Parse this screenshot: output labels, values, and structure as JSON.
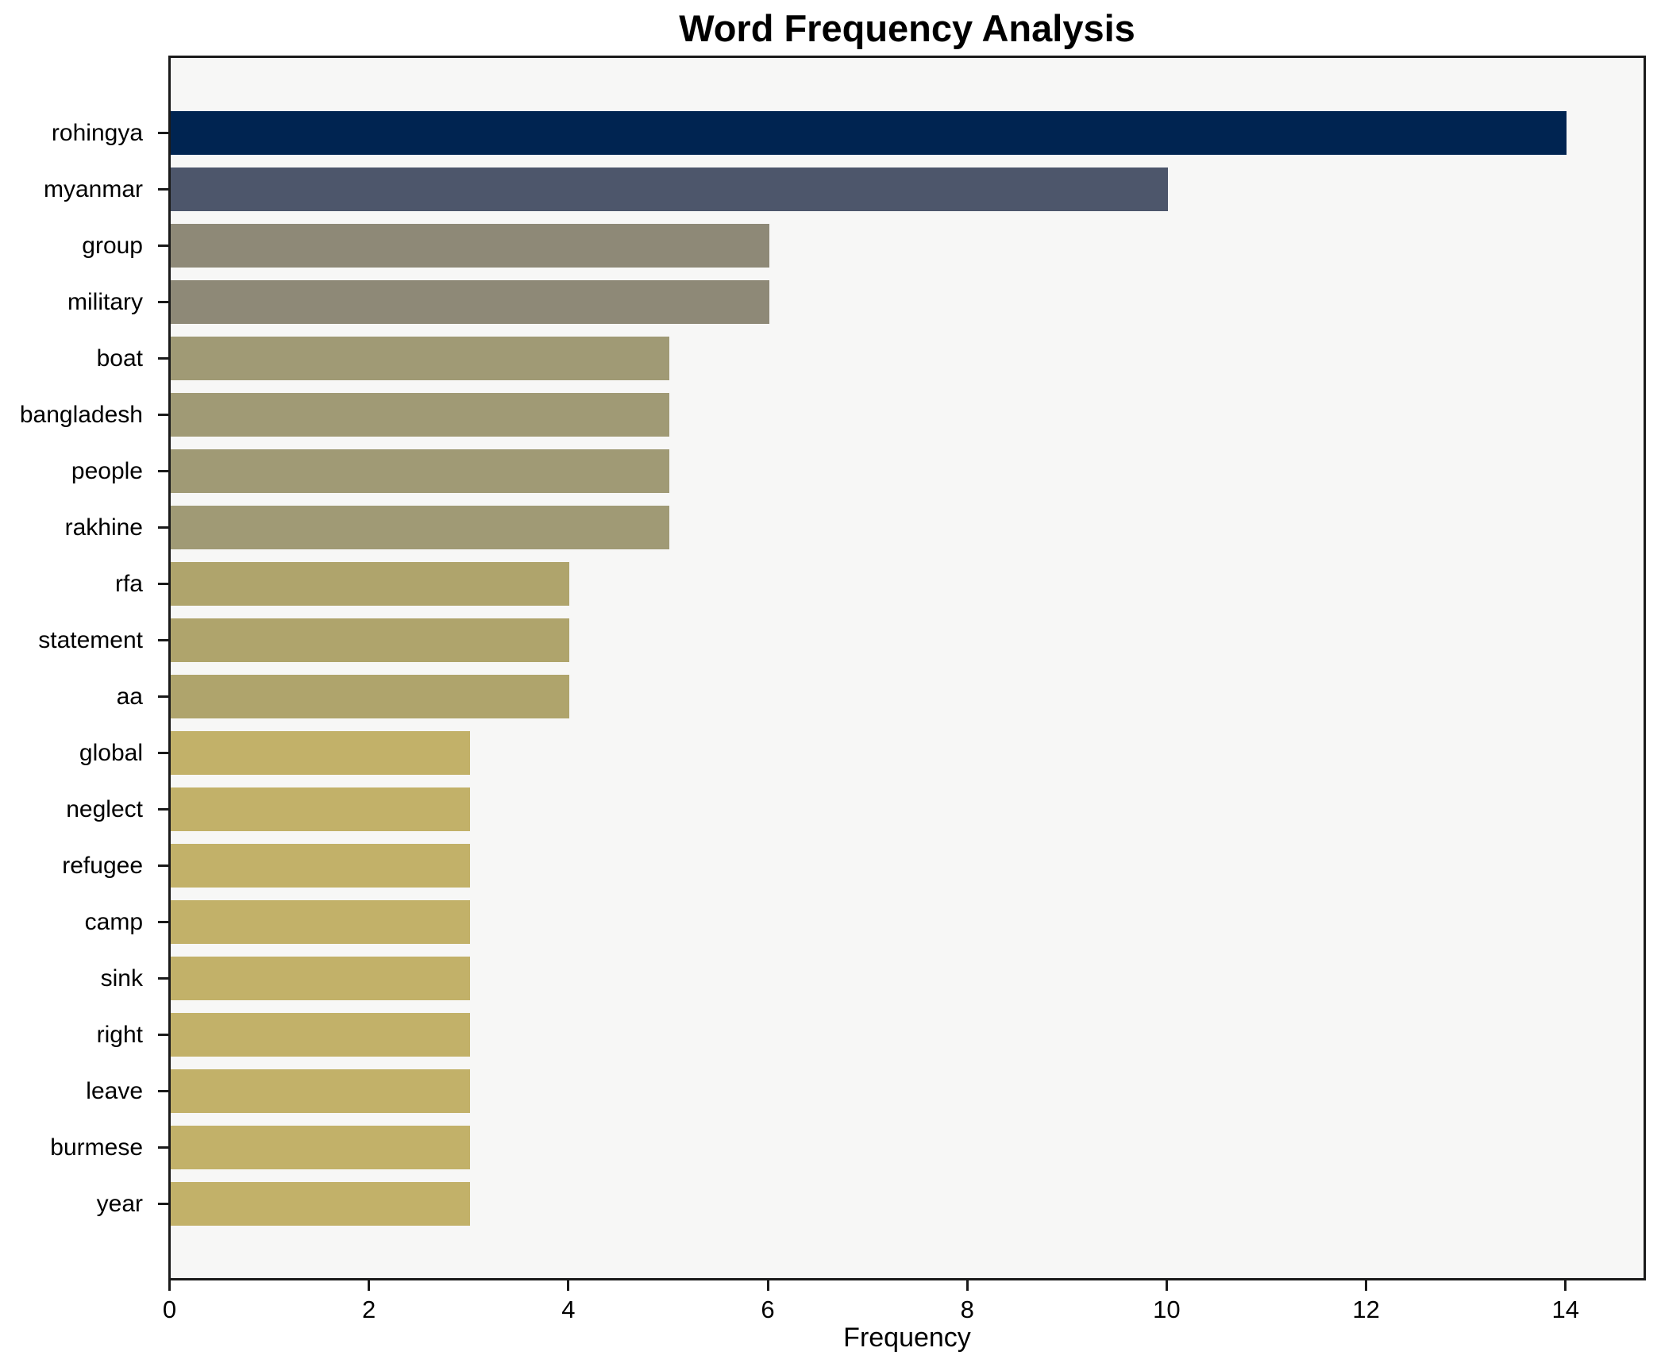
{
  "chart": {
    "title": "Word Frequency Analysis",
    "xlabel": "Frequency"
  },
  "chart_data": {
    "type": "bar",
    "orientation": "horizontal",
    "title": "Word Frequency Analysis",
    "xlabel": "Frequency",
    "ylabel": "",
    "xlim": [
      0,
      14.77
    ],
    "xticks": [
      0,
      2,
      4,
      6,
      8,
      10,
      12,
      14
    ],
    "grid": false,
    "legend": "none",
    "plot_background": "#f7f7f6",
    "figure_background": "#ffffff",
    "spine_color": "#1a1a1a",
    "categories": [
      "rohingya",
      "myanmar",
      "group",
      "military",
      "boat",
      "bangladesh",
      "people",
      "rakhine",
      "rfa",
      "statement",
      "aa",
      "global",
      "neglect",
      "refugee",
      "camp",
      "sink",
      "right",
      "leave",
      "burmese",
      "year"
    ],
    "values": [
      14,
      10,
      6,
      6,
      5,
      5,
      5,
      5,
      4,
      4,
      4,
      3,
      3,
      3,
      3,
      3,
      3,
      3,
      3,
      3
    ],
    "bar_colors": [
      "#002451",
      "#4d566b",
      "#8e8977",
      "#8e8977",
      "#a09a75",
      "#a09a75",
      "#a09a75",
      "#a09a75",
      "#afa46c",
      "#afa46c",
      "#afa46c",
      "#c2b169",
      "#c2b169",
      "#c2b169",
      "#c2b169",
      "#c2b169",
      "#c2b169",
      "#c2b169",
      "#c2b169",
      "#c2b169"
    ]
  }
}
